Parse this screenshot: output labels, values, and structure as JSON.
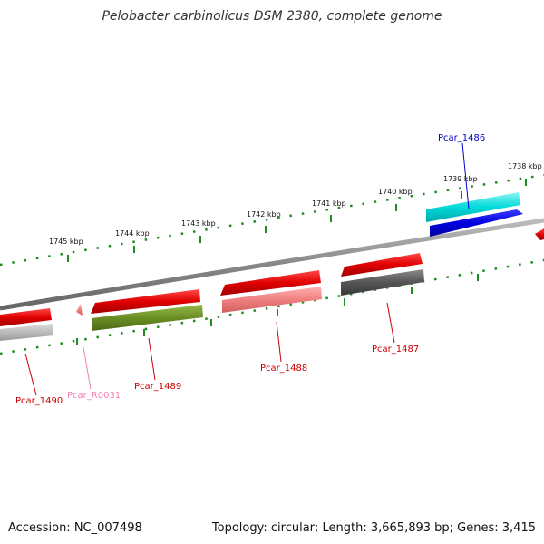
{
  "title": "Pelobacter carbinolicus DSM 2380, complete genome",
  "footer": {
    "accession": "Accession: NC_007498",
    "summary": "Topology: circular; Length: 3,665,893 bp; Genes: 3,415"
  },
  "scale": {
    "tick_color": "#1e8c1e",
    "labels": [
      {
        "text": "1745 kbp",
        "kbp": 1745
      },
      {
        "text": "1744 kbp",
        "kbp": 1744
      },
      {
        "text": "1743 kbp",
        "kbp": 1743
      },
      {
        "text": "1742 kbp",
        "kbp": 1742
      },
      {
        "text": "1741 kbp",
        "kbp": 1741
      },
      {
        "text": "1740 kbp",
        "kbp": 1740
      },
      {
        "text": "1739 kbp",
        "kbp": 1739
      },
      {
        "text": "1738 kbp",
        "kbp": 1738
      }
    ]
  },
  "genes": [
    {
      "label": "Pcar_1486",
      "color": "#0000cc",
      "label_color": "#0000cc",
      "strand": "forward"
    },
    {
      "label": "Pcar_1487",
      "color": "#e00000",
      "label_color": "#cc0000",
      "strand": "forward"
    },
    {
      "label": "Pcar_1488",
      "color": "#e00000",
      "label_color": "#cc0000",
      "strand": "forward"
    },
    {
      "label": "Pcar_1489",
      "color": "#e00000",
      "label_color": "#cc0000",
      "strand": "forward"
    },
    {
      "label": "Pcar_R0031",
      "color": "#f080b0",
      "label_color": "#f080b0",
      "strand": "forward"
    },
    {
      "label": "Pcar_1490",
      "color": "#e00000",
      "label_color": "#cc0000",
      "strand": "forward"
    }
  ],
  "colors": {
    "backbone": "#888888",
    "cog_cyan": "#00d8d8",
    "cog_olive": "#6b8e23",
    "cog_pink": "#f08080",
    "cog_dark_gray": "#555555",
    "cog_light_gray": "#bbbbbb"
  }
}
